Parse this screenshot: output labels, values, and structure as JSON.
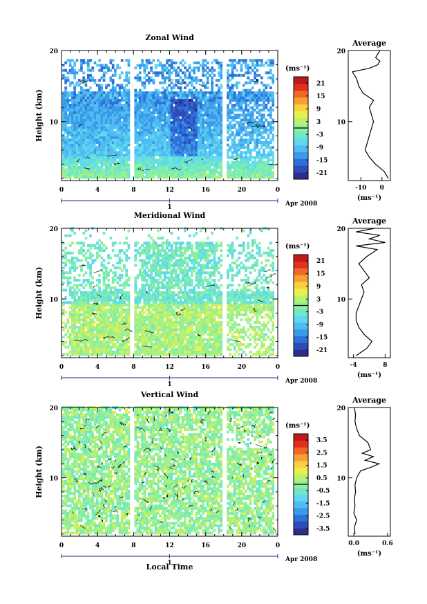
{
  "chart_data": [
    {
      "type": "heatmap",
      "title": "Zonal Wind",
      "ylabel": "Height (km)",
      "x_ticks": [
        "0",
        "4",
        "8",
        "12",
        "16",
        "20",
        "0"
      ],
      "y_ticks": [
        "10",
        "20"
      ],
      "xlim": [
        0,
        24
      ],
      "ylim": [
        1.7,
        20
      ],
      "date_marker": "1",
      "date_label": "Apr 2008",
      "colorbar": {
        "unit": "(ms⁻¹)",
        "ticks": [
          "21",
          "15",
          "9",
          "3",
          "-3",
          "-9",
          "-15",
          "-21"
        ],
        "range": [
          -24,
          24
        ]
      },
      "profile": {
        "title": "Average",
        "xlabel": "(ms⁻¹)",
        "x_ticks": [
          "-10",
          "0"
        ],
        "y_ticks": [
          "10",
          "20"
        ],
        "xlim": [
          -16,
          4
        ],
        "ylim": [
          1.7,
          20
        ],
        "points": [
          [
            3,
            2
          ],
          [
            1,
            3
          ],
          [
            -3,
            4
          ],
          [
            -6,
            5
          ],
          [
            -8,
            6
          ],
          [
            -7,
            7
          ],
          [
            -6,
            8
          ],
          [
            -5,
            9
          ],
          [
            -4,
            10
          ],
          [
            -5,
            11
          ],
          [
            -6,
            12
          ],
          [
            -4,
            13
          ],
          [
            -9,
            14
          ],
          [
            -11,
            15
          ],
          [
            -12,
            16
          ],
          [
            -14,
            17
          ],
          [
            -6,
            17.5
          ],
          [
            -2,
            18
          ],
          [
            -1,
            18.5
          ],
          [
            -3,
            19
          ],
          [
            -2,
            19.5
          ],
          [
            -1,
            20
          ]
        ]
      }
    },
    {
      "type": "heatmap",
      "title": "Meridional Wind",
      "ylabel": "Height (km)",
      "x_ticks": [
        "0",
        "4",
        "8",
        "12",
        "16",
        "20",
        "0"
      ],
      "y_ticks": [
        "10",
        "20"
      ],
      "xlim": [
        0,
        24
      ],
      "ylim": [
        1.7,
        20
      ],
      "date_marker": "1",
      "date_label": "Apr 2008",
      "colorbar": {
        "unit": "(ms⁻¹)",
        "ticks": [
          "21",
          "15",
          "9",
          "3",
          "-3",
          "-9",
          "-15",
          "-21"
        ],
        "range": [
          -24,
          24
        ]
      },
      "profile": {
        "title": "Average",
        "xlabel": "(ms⁻¹)",
        "x_ticks": [
          "-4",
          "8"
        ],
        "y_ticks": [
          "10",
          "20"
        ],
        "xlim": [
          -6,
          10
        ],
        "ylim": [
          1.7,
          20
        ],
        "points": [
          [
            -3,
            2
          ],
          [
            1,
            3
          ],
          [
            3,
            4
          ],
          [
            0,
            5
          ],
          [
            -2,
            6
          ],
          [
            -3,
            7
          ],
          [
            -3,
            8
          ],
          [
            -2,
            9
          ],
          [
            -1,
            10
          ],
          [
            0,
            11
          ],
          [
            -1,
            12
          ],
          [
            2,
            13
          ],
          [
            0,
            14
          ],
          [
            -2,
            15
          ],
          [
            1,
            16
          ],
          [
            5,
            17
          ],
          [
            -3,
            17.5
          ],
          [
            8,
            18
          ],
          [
            2,
            18.5
          ],
          [
            6,
            19
          ],
          [
            -3,
            19.5
          ],
          [
            4,
            20
          ]
        ]
      }
    },
    {
      "type": "heatmap",
      "title": "Vertical Wind",
      "ylabel": "Height (km)",
      "xlabel": "Local Time",
      "x_ticks": [
        "0",
        "4",
        "8",
        "12",
        "16",
        "20",
        "0"
      ],
      "y_ticks": [
        "10",
        "20"
      ],
      "xlim": [
        0,
        24
      ],
      "ylim": [
        1.7,
        20
      ],
      "date_marker": "1",
      "date_label": "Apr 2008",
      "colorbar": {
        "unit": "(ms⁻¹)",
        "ticks": [
          "3.5",
          "2.5",
          "1.5",
          "0.5",
          "-0.5",
          "-1.5",
          "-2.5",
          "-3.5"
        ],
        "range": [
          -4,
          4
        ]
      },
      "profile": {
        "title": "Average",
        "xlabel": "(ms⁻¹)",
        "x_ticks": [
          "0.0",
          "0.6"
        ],
        "y_ticks": [
          "10",
          "20"
        ],
        "xlim": [
          -0.1,
          0.65
        ],
        "ylim": [
          1.7,
          20
        ],
        "points": [
          [
            0.02,
            2
          ],
          [
            0.01,
            3
          ],
          [
            0.05,
            4
          ],
          [
            0.0,
            5
          ],
          [
            0.02,
            6
          ],
          [
            0.01,
            7
          ],
          [
            0.03,
            8
          ],
          [
            0.02,
            9
          ],
          [
            0.05,
            10
          ],
          [
            0.12,
            11
          ],
          [
            0.3,
            11.5
          ],
          [
            0.45,
            12
          ],
          [
            0.2,
            12.5
          ],
          [
            0.35,
            13
          ],
          [
            0.15,
            13.5
          ],
          [
            0.3,
            14
          ],
          [
            0.25,
            15
          ],
          [
            0.1,
            16
          ],
          [
            0.05,
            17
          ],
          [
            0.02,
            18
          ],
          [
            0.03,
            19
          ],
          [
            0.01,
            20
          ]
        ]
      }
    }
  ]
}
